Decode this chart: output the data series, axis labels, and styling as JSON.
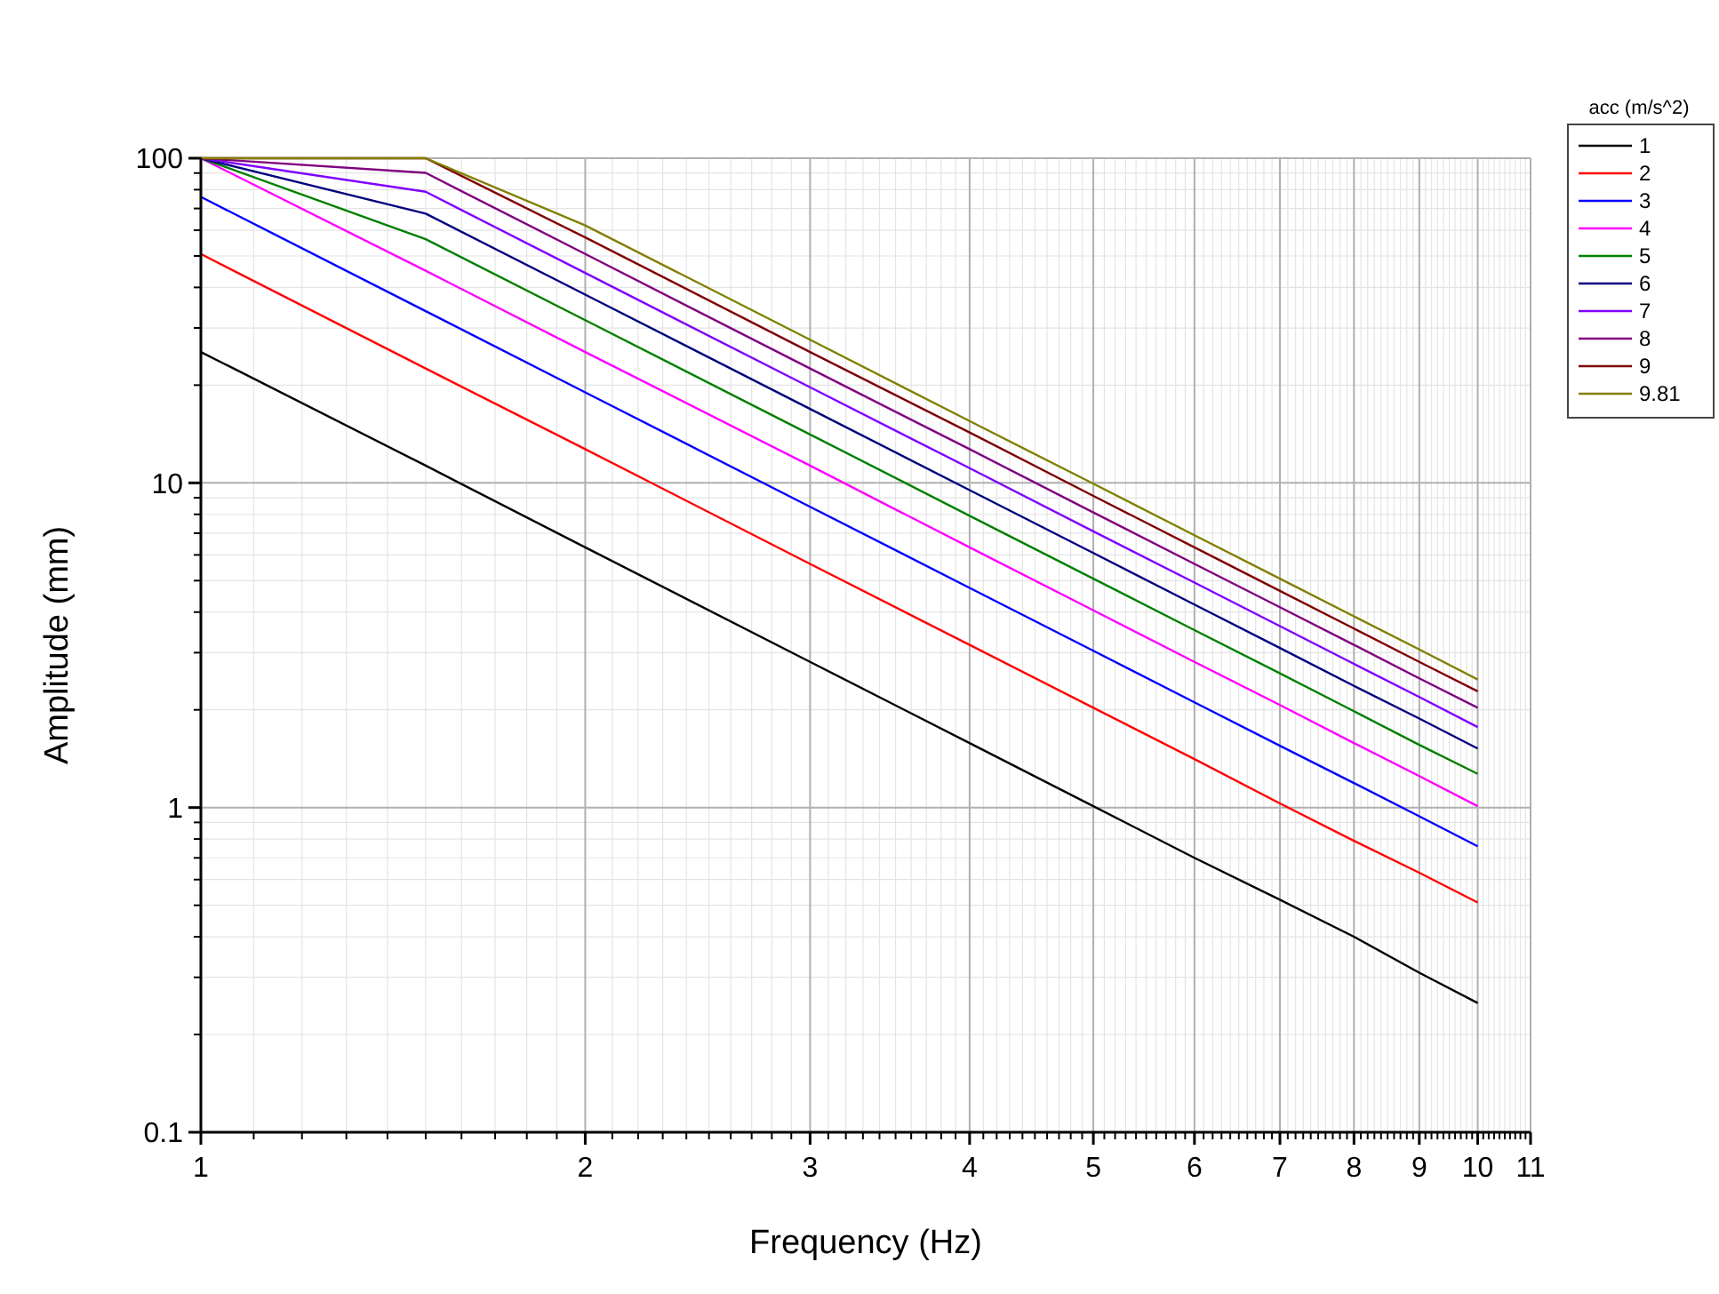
{
  "chart_data": {
    "type": "line",
    "xlabel": "Frequency (Hz)",
    "ylabel": "Amplitude (mm)",
    "legend_title": "acc (m/s^2)",
    "log": "xy",
    "grid": true,
    "legend": "top right",
    "line_style": "solid",
    "xlim": [
      1,
      11
    ],
    "xticks": [
      1,
      2,
      3,
      4,
      5,
      6,
      7,
      8,
      9,
      10,
      11
    ],
    "ylim": [
      0.1,
      100
    ],
    "yticks": [
      0.1,
      1,
      10,
      100
    ],
    "x": [
      1,
      1.5,
      2,
      3,
      4,
      5,
      6,
      7,
      8,
      9,
      10
    ],
    "series": [
      {
        "name": "1",
        "color": "#000000",
        "values": [
          25.3,
          11.3,
          6.33,
          2.81,
          1.58,
          1.01,
          0.7,
          0.52,
          0.4,
          0.31,
          0.25
        ]
      },
      {
        "name": "2",
        "color": "#ff0000",
        "values": [
          50.7,
          22.5,
          12.7,
          5.63,
          3.17,
          2.03,
          1.41,
          1.03,
          0.79,
          0.63,
          0.51
        ]
      },
      {
        "name": "3",
        "color": "#0000ff",
        "values": [
          76,
          33.8,
          19,
          8.44,
          4.75,
          3.04,
          2.11,
          1.55,
          1.19,
          0.94,
          0.76
        ]
      },
      {
        "name": "4",
        "color": "#ff00ff",
        "values": [
          100,
          45,
          25.3,
          11.3,
          6.33,
          4.05,
          2.81,
          2.07,
          1.58,
          1.25,
          1.01
        ]
      },
      {
        "name": "5",
        "color": "#008000",
        "values": [
          100,
          56.3,
          31.7,
          14.1,
          7.92,
          5.07,
          3.52,
          2.59,
          1.98,
          1.56,
          1.27
        ]
      },
      {
        "name": "6",
        "color": "#000080",
        "values": [
          100,
          67.5,
          38,
          16.9,
          9.5,
          6.08,
          4.22,
          3.1,
          2.37,
          1.88,
          1.52
        ]
      },
      {
        "name": "7",
        "color": "#8000ff",
        "values": [
          100,
          78.8,
          44.3,
          19.7,
          11.1,
          7.09,
          4.93,
          3.62,
          2.77,
          2.19,
          1.77
        ]
      },
      {
        "name": "8",
        "color": "#800080",
        "values": [
          100,
          90.1,
          50.7,
          22.5,
          12.7,
          8.11,
          5.63,
          4.14,
          3.17,
          2.5,
          2.03
        ]
      },
      {
        "name": "9",
        "color": "#800000",
        "values": [
          100,
          100,
          57,
          25.3,
          14.3,
          9.12,
          6.33,
          4.65,
          3.56,
          2.81,
          2.28
        ]
      },
      {
        "name": "9.81",
        "color": "#808000",
        "values": [
          100,
          100,
          62.1,
          27.6,
          15.5,
          9.94,
          6.9,
          5.07,
          3.88,
          3.07,
          2.48
        ]
      }
    ]
  }
}
